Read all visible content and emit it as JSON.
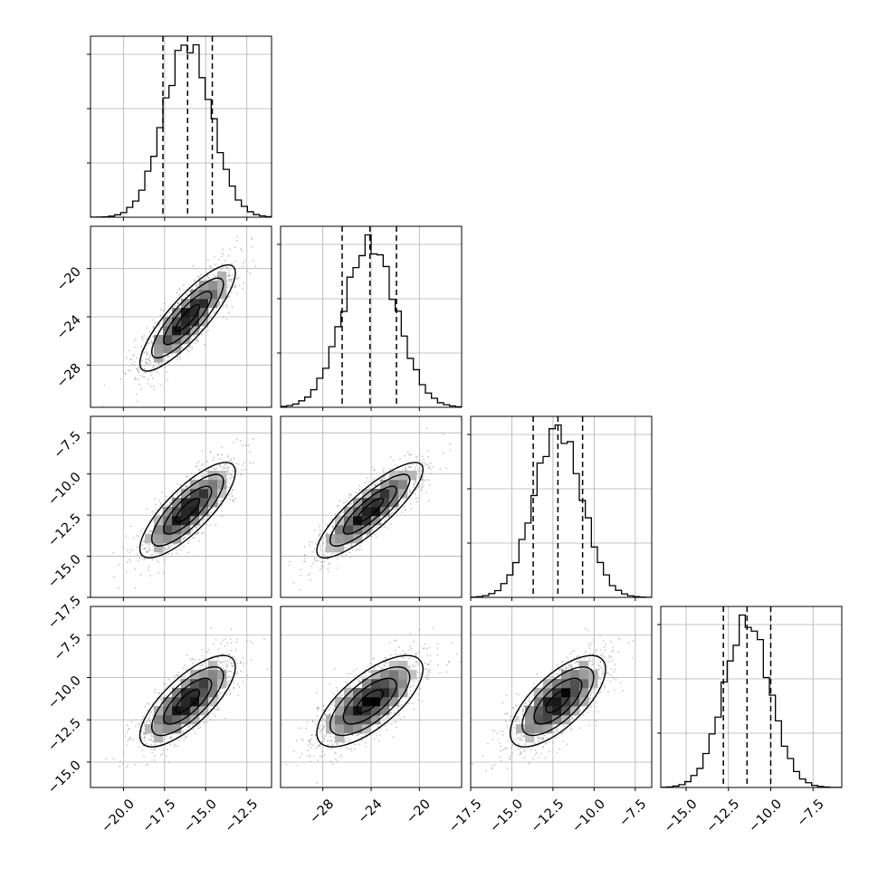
{
  "chart_data": {
    "type": "corner",
    "title": "",
    "parameters": [
      {
        "range": [
          -22.0,
          -11.0
        ],
        "ticks": [
          -20.0,
          -17.5,
          -15.0,
          -12.5
        ],
        "tick_labels": [
          "−20.0",
          "−17.5",
          "−15.0",
          "−12.5"
        ],
        "quantiles": [
          -17.6,
          -16.1,
          -14.6
        ],
        "mean": -16.1,
        "sd": 1.45
      },
      {
        "range": [
          -31.5,
          -16.5
        ],
        "ticks": [
          -28,
          -24,
          -20
        ],
        "tick_labels": [
          "−28",
          "−24",
          "−20"
        ],
        "quantiles": [
          -26.4,
          -24.1,
          -21.9
        ],
        "mean": -24.1,
        "sd": 2.2
      },
      {
        "range": [
          -17.5,
          -6.5
        ],
        "ticks": [
          -17.5,
          -15.0,
          -12.5,
          -10.0,
          -7.5
        ],
        "tick_labels": [
          "−17.5",
          "−15.0",
          "−12.5",
          "−10.0",
          "−7.5"
        ],
        "quantiles": [
          -13.7,
          -12.2,
          -10.7
        ],
        "mean": -12.2,
        "sd": 1.45
      },
      {
        "range": [
          -16.5,
          -5.8
        ],
        "ticks": [
          -15.0,
          -12.5,
          -10.0,
          -7.5
        ],
        "tick_labels": [
          "−15.0",
          "−12.5",
          "−10.0",
          "−7.5"
        ],
        "quantiles": [
          -12.8,
          -11.4,
          -10.0
        ],
        "mean": -11.4,
        "sd": 1.35
      }
    ],
    "correlations": [
      [
        0,
        1,
        0.85
      ],
      [
        0,
        2,
        0.8
      ],
      [
        0,
        3,
        0.75
      ],
      [
        1,
        2,
        0.85
      ],
      [
        1,
        3,
        0.7
      ],
      [
        2,
        3,
        0.7
      ]
    ],
    "quantile_line_style": "dashed",
    "contour_levels": [
      "0.5 sigma",
      "1 sigma",
      "1.5 sigma",
      "2 sigma"
    ],
    "grid": true,
    "colors": {
      "contour": "#000000",
      "scatter": "#9a9a9a",
      "hist": "#000000",
      "grid": "#b0b0b0"
    }
  }
}
